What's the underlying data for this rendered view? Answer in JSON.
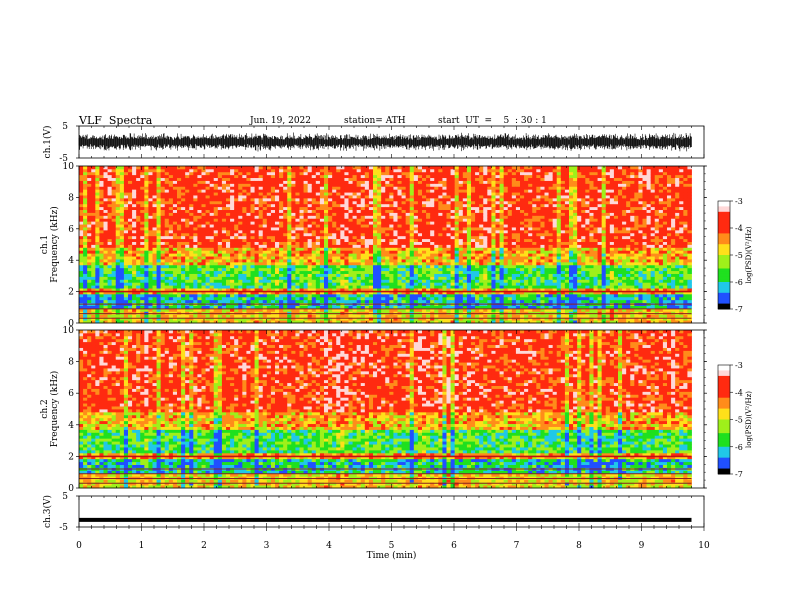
{
  "header": {
    "title": "VLF  Spectra",
    "date": "Jun. 19, 2022",
    "station": "station= ATH",
    "start_label": "start  UT  =    5  : 30 : 1"
  },
  "chart_data": [
    {
      "type": "line",
      "panel": "ch1-waveform",
      "ylabel": "ch.1(V)",
      "ylim": [
        -5,
        5
      ],
      "yticks": [
        "5",
        "-5"
      ],
      "xlim": [
        0,
        10
      ],
      "description_values": {
        "typical_amplitude_v": 2.5,
        "offset_v": 0
      }
    },
    {
      "type": "heatmap",
      "panel": "ch1-spectrogram",
      "ylabel": "Frequency  (kHz)",
      "channel_label": "ch.1",
      "ylim": [
        0,
        10
      ],
      "yticks": [
        "0",
        "2",
        "4",
        "6",
        "8",
        "10"
      ],
      "xlim": [
        0,
        10
      ],
      "data_end_min": 9.8,
      "colorbar": {
        "label": "log(PSD)(V²/Hz)",
        "range": [
          -7,
          -3
        ],
        "ticks": [
          "-3",
          "-4",
          "-5",
          "-6",
          "-7"
        ]
      },
      "bands_khz": {
        "high_band_start": 3.7,
        "strong_line": 2.0,
        "low_lines": [
          0.3,
          0.6,
          0.9,
          1.2
        ]
      }
    },
    {
      "type": "heatmap",
      "panel": "ch2-spectrogram",
      "ylabel": "Frequency  (kHz)",
      "channel_label": "ch.2",
      "ylim": [
        0,
        10
      ],
      "yticks": [
        "0",
        "2",
        "4",
        "6",
        "8",
        "10"
      ],
      "xlim": [
        0,
        10
      ],
      "data_end_min": 9.8,
      "colorbar": {
        "label": "log(PSD)(V²/Hz)",
        "range": [
          -7,
          -3
        ],
        "ticks": [
          "-3",
          "-4",
          "-5",
          "-6",
          "-7"
        ]
      },
      "bands_khz": {
        "high_band_start": 3.7,
        "strong_line": 2.0,
        "low_lines": [
          0.3,
          0.6,
          0.9,
          1.2
        ]
      }
    },
    {
      "type": "line",
      "panel": "ch3-waveform",
      "ylabel": "ch.3(V)",
      "ylim": [
        -5,
        5
      ],
      "yticks": [
        "5",
        "-5"
      ],
      "xlim": [
        0,
        10
      ],
      "description_values": {
        "level_v": -2.7
      }
    }
  ],
  "xaxis": {
    "label": "Time  (min)",
    "ticks": [
      "0",
      "1",
      "2",
      "3",
      "4",
      "5",
      "6",
      "7",
      "8",
      "9",
      "10"
    ]
  },
  "colors": {
    "red": "#ff2a10",
    "orange": "#ff8c1a",
    "yellow": "#ffe01a",
    "green": "#1fe01f",
    "cyan": "#20c8e8",
    "blue": "#2050ff",
    "trace": "#000000"
  }
}
